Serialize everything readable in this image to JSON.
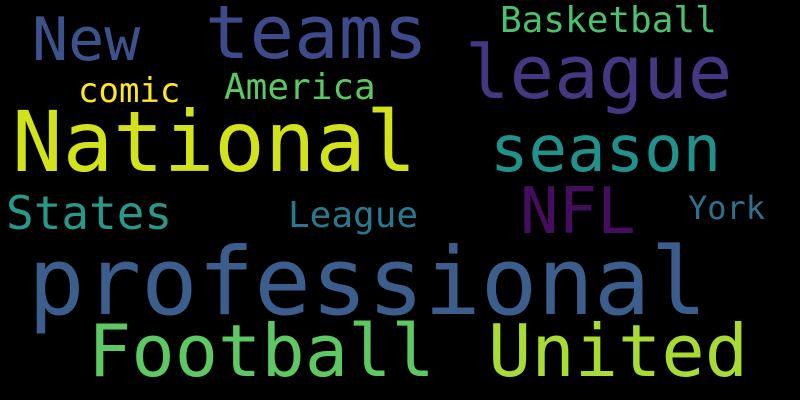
{
  "background": "#000000",
  "words": [
    {
      "id": "w-professional",
      "text": "professional",
      "color": "#3b5e8c"
    },
    {
      "id": "w-national",
      "text": "National",
      "color": "#d2e21b"
    },
    {
      "id": "w-football",
      "text": "Football",
      "color": "#5ec962"
    },
    {
      "id": "w-united",
      "text": "United",
      "color": "#a8db34"
    },
    {
      "id": "w-league-big",
      "text": "league",
      "color": "#453781"
    },
    {
      "id": "w-teams",
      "text": "teams",
      "color": "#3e4a89"
    },
    {
      "id": "w-season",
      "text": "season",
      "color": "#21918c"
    },
    {
      "id": "w-nfl",
      "text": "NFL",
      "color": "#440d5e"
    },
    {
      "id": "w-new",
      "text": "New",
      "color": "#3b528b"
    },
    {
      "id": "w-states",
      "text": "States",
      "color": "#29988a"
    },
    {
      "id": "w-basketball",
      "text": "Basketball",
      "color": "#4ac16d"
    },
    {
      "id": "w-league-small",
      "text": "League",
      "color": "#2a788e"
    },
    {
      "id": "w-america",
      "text": "America",
      "color": "#5cc863"
    },
    {
      "id": "w-york",
      "text": "York",
      "color": "#2c728e"
    },
    {
      "id": "w-comic",
      "text": "comic",
      "color": "#fde725"
    }
  ]
}
